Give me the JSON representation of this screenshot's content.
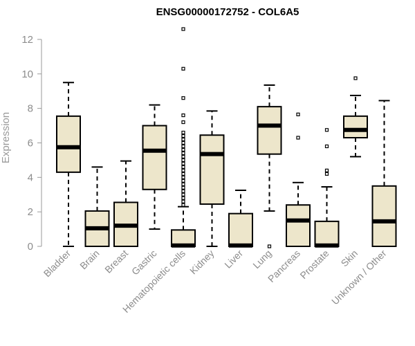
{
  "chart_data": {
    "type": "boxplot",
    "title": "ENSG00000172752 - COL6A5",
    "xlabel": "",
    "ylabel": "Expression",
    "ylim": [
      0,
      12.6
    ],
    "yticks": [
      0,
      2,
      4,
      6,
      8,
      10,
      12
    ],
    "box_fill": "#ede6cb",
    "categories": [
      "Bladder",
      "Brain",
      "Breast",
      "Gastric",
      "Hematopoietic cells",
      "Kidney",
      "Liver",
      "Lung",
      "Pancreas",
      "Prostate",
      "Skin",
      "Unknown / Other"
    ],
    "boxes": [
      {
        "name": "Bladder",
        "whisker_low": 0,
        "q1": 4.3,
        "median": 5.75,
        "q3": 7.55,
        "whisker_high": 9.5,
        "outliers": []
      },
      {
        "name": "Brain",
        "whisker_low": 0,
        "q1": 0,
        "median": 1.05,
        "q3": 2.05,
        "whisker_high": 4.6,
        "outliers": []
      },
      {
        "name": "Breast",
        "whisker_low": 0,
        "q1": 0,
        "median": 1.2,
        "q3": 2.55,
        "whisker_high": 4.95,
        "outliers": []
      },
      {
        "name": "Gastric",
        "whisker_low": 1.0,
        "q1": 3.3,
        "median": 5.55,
        "q3": 7.0,
        "whisker_high": 8.2,
        "outliers": []
      },
      {
        "name": "Hematopoietic cells",
        "whisker_low": 0,
        "q1": 0,
        "median": 0.05,
        "q3": 0.95,
        "whisker_high": 2.3,
        "outliers": [
          2.4,
          2.6,
          2.8,
          3.0,
          3.2,
          3.4,
          3.6,
          3.8,
          4.0,
          4.2,
          4.4,
          4.6,
          4.8,
          5.0,
          5.2,
          5.4,
          5.6,
          5.8,
          6.0,
          6.2,
          6.4,
          6.6,
          7.2,
          7.6,
          8.6,
          10.3,
          12.6
        ]
      },
      {
        "name": "Kidney",
        "whisker_low": 0,
        "q1": 2.45,
        "median": 5.35,
        "q3": 6.45,
        "whisker_high": 7.85,
        "outliers": []
      },
      {
        "name": "Liver",
        "whisker_low": 0,
        "q1": 0,
        "median": 0.05,
        "q3": 1.9,
        "whisker_high": 3.25,
        "outliers": []
      },
      {
        "name": "Lung",
        "whisker_low": 2.05,
        "q1": 5.35,
        "median": 7.0,
        "q3": 8.1,
        "whisker_high": 9.35,
        "outliers": [
          0
        ]
      },
      {
        "name": "Pancreas",
        "whisker_low": 0,
        "q1": 0,
        "median": 1.5,
        "q3": 2.4,
        "whisker_high": 3.7,
        "outliers": [
          6.3,
          7.65
        ]
      },
      {
        "name": "Prostate",
        "whisker_low": 0,
        "q1": 0,
        "median": 0.05,
        "q3": 1.45,
        "whisker_high": 3.45,
        "outliers": [
          4.2,
          4.4,
          5.8,
          6.75
        ]
      },
      {
        "name": "Skin",
        "whisker_low": 5.2,
        "q1": 6.3,
        "median": 6.75,
        "q3": 7.55,
        "whisker_high": 8.75,
        "outliers": [
          9.75
        ]
      },
      {
        "name": "Unknown / Other",
        "whisker_low": 0,
        "q1": 0,
        "median": 1.45,
        "q3": 3.5,
        "whisker_high": 8.45,
        "outliers": []
      }
    ]
  }
}
